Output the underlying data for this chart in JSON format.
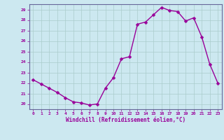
{
  "x": [
    0,
    1,
    2,
    3,
    4,
    5,
    6,
    7,
    8,
    9,
    10,
    11,
    12,
    13,
    14,
    15,
    16,
    17,
    18,
    19,
    20,
    21,
    22,
    23
  ],
  "y": [
    22.3,
    21.9,
    21.5,
    21.1,
    20.6,
    20.2,
    20.1,
    19.9,
    20.0,
    21.5,
    22.5,
    24.3,
    24.5,
    27.6,
    27.8,
    28.5,
    29.2,
    28.9,
    28.8,
    27.9,
    28.2,
    26.4,
    23.8,
    22.0
  ],
  "line_color": "#990099",
  "marker_color": "#990099",
  "bg_color": "#cce8f0",
  "grid_color": "#aacccc",
  "xlabel": "Windchill (Refroidissement éolien,°C)",
  "xlabel_color": "#990099",
  "tick_color": "#990099",
  "ylim": [
    19.5,
    29.5
  ],
  "yticks": [
    20,
    21,
    22,
    23,
    24,
    25,
    26,
    27,
    28,
    29
  ],
  "xticks": [
    0,
    1,
    2,
    3,
    4,
    5,
    6,
    7,
    8,
    9,
    10,
    11,
    12,
    13,
    14,
    15,
    16,
    17,
    18,
    19,
    20,
    21,
    22,
    23
  ],
  "marker_size": 2.5,
  "line_width": 1.0
}
